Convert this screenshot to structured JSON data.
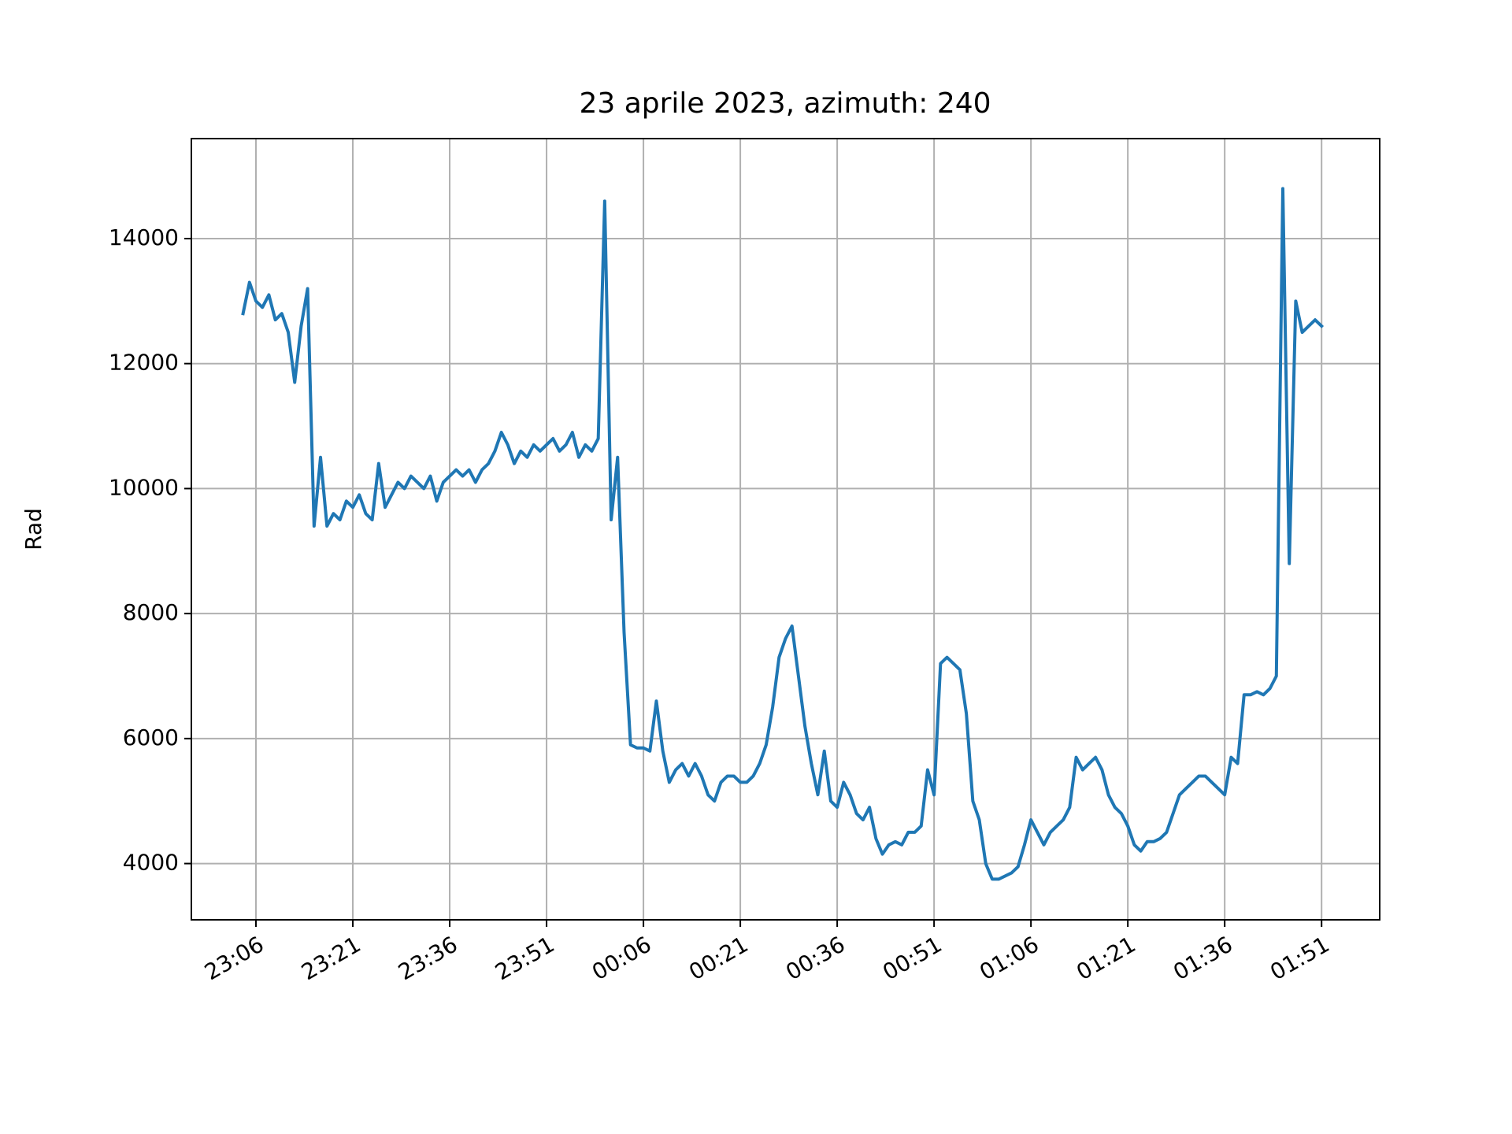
{
  "chart_data": {
    "type": "line",
    "title": "23 aprile 2023, azimuth: 240",
    "y_label": "Rad",
    "color": "#1f77b4",
    "grid": true,
    "x": [
      "23:04",
      "23:05",
      "23:06",
      "23:07",
      "23:08",
      "23:09",
      "23:10",
      "23:11",
      "23:12",
      "23:13",
      "23:14",
      "23:15",
      "23:16",
      "23:17",
      "23:18",
      "23:19",
      "23:20",
      "23:21",
      "23:22",
      "23:23",
      "23:24",
      "23:25",
      "23:26",
      "23:27",
      "23:28",
      "23:29",
      "23:30",
      "23:31",
      "23:32",
      "23:33",
      "23:34",
      "23:35",
      "23:36",
      "23:37",
      "23:38",
      "23:39",
      "23:40",
      "23:41",
      "23:42",
      "23:43",
      "23:44",
      "23:45",
      "23:46",
      "23:47",
      "23:48",
      "23:49",
      "23:50",
      "23:51",
      "23:52",
      "23:53",
      "23:54",
      "23:55",
      "23:56",
      "23:57",
      "23:58",
      "23:59",
      "00:00",
      "00:01",
      "00:02",
      "00:03",
      "00:04",
      "00:05",
      "00:06",
      "00:07",
      "00:08",
      "00:09",
      "00:10",
      "00:11",
      "00:12",
      "00:13",
      "00:14",
      "00:15",
      "00:16",
      "00:17",
      "00:18",
      "00:19",
      "00:20",
      "00:21",
      "00:22",
      "00:23",
      "00:24",
      "00:25",
      "00:26",
      "00:27",
      "00:28",
      "00:29",
      "00:30",
      "00:31",
      "00:32",
      "00:33",
      "00:34",
      "00:35",
      "00:36",
      "00:37",
      "00:38",
      "00:39",
      "00:40",
      "00:41",
      "00:42",
      "00:43",
      "00:44",
      "00:45",
      "00:46",
      "00:47",
      "00:48",
      "00:49",
      "00:50",
      "00:51",
      "00:52",
      "00:53",
      "00:54",
      "00:55",
      "00:56",
      "00:57",
      "00:58",
      "00:59",
      "01:00",
      "01:01",
      "01:02",
      "01:03",
      "01:04",
      "01:05",
      "01:06",
      "01:07",
      "01:08",
      "01:09",
      "01:10",
      "01:11",
      "01:12",
      "01:13",
      "01:14",
      "01:15",
      "01:16",
      "01:17",
      "01:18",
      "01:19",
      "01:20",
      "01:21",
      "01:22",
      "01:23",
      "01:24",
      "01:25",
      "01:26",
      "01:27",
      "01:28",
      "01:29",
      "01:30",
      "01:31",
      "01:32",
      "01:33",
      "01:34",
      "01:35",
      "01:36",
      "01:37",
      "01:38",
      "01:39",
      "01:40",
      "01:41",
      "01:42",
      "01:43",
      "01:44",
      "01:45",
      "01:46",
      "01:47",
      "01:48",
      "01:49",
      "01:50",
      "01:51"
    ],
    "values": [
      12800,
      13300,
      13000,
      12900,
      13100,
      12700,
      12800,
      12500,
      11700,
      12600,
      13200,
      9400,
      10500,
      9400,
      9600,
      9500,
      9800,
      9700,
      9900,
      9600,
      9500,
      10400,
      9700,
      9900,
      10100,
      10000,
      10200,
      10100,
      10000,
      10200,
      9800,
      10100,
      10200,
      10300,
      10200,
      10300,
      10100,
      10300,
      10400,
      10600,
      10900,
      10700,
      10400,
      10600,
      10500,
      10700,
      10600,
      10700,
      10800,
      10600,
      10700,
      10900,
      10500,
      10700,
      10600,
      10800,
      14600,
      9500,
      10500,
      7700,
      5900,
      5850,
      5850,
      5800,
      6600,
      5800,
      5300,
      5500,
      5600,
      5400,
      5600,
      5400,
      5100,
      5000,
      5300,
      5400,
      5400,
      5300,
      5300,
      5400,
      5600,
      5900,
      6500,
      7300,
      7600,
      7800,
      7000,
      6200,
      5600,
      5100,
      5800,
      5000,
      4900,
      5300,
      5100,
      4800,
      4700,
      4900,
      4400,
      4150,
      4300,
      4350,
      4300,
      4500,
      4500,
      4600,
      5500,
      5100,
      7200,
      7300,
      7200,
      7100,
      6400,
      5000,
      4700,
      4000,
      3750,
      3750,
      3800,
      3850,
      3950,
      4300,
      4700,
      4500,
      4300,
      4500,
      4600,
      4700,
      4900,
      5700,
      5500,
      5600,
      5700,
      5500,
      5100,
      4900,
      4800,
      4600,
      4300,
      4200,
      4350,
      4350,
      4400,
      4500,
      4800,
      5100,
      5200,
      5300,
      5400,
      5400,
      5300,
      5200,
      5100,
      5700,
      5600,
      6700,
      6700,
      6750,
      6700,
      6800,
      7000,
      14800,
      8800,
      13000,
      12500,
      12600,
      12700,
      12600
    ],
    "xlim": [
      "22:56",
      "02:00"
    ],
    "xticks": [
      "23:06",
      "23:21",
      "23:36",
      "23:51",
      "00:06",
      "00:21",
      "00:36",
      "00:51",
      "01:06",
      "01:21",
      "01:36",
      "01:51"
    ],
    "ylim": [
      3100,
      15600
    ],
    "yticks": [
      4000,
      6000,
      8000,
      10000,
      12000,
      14000
    ]
  }
}
